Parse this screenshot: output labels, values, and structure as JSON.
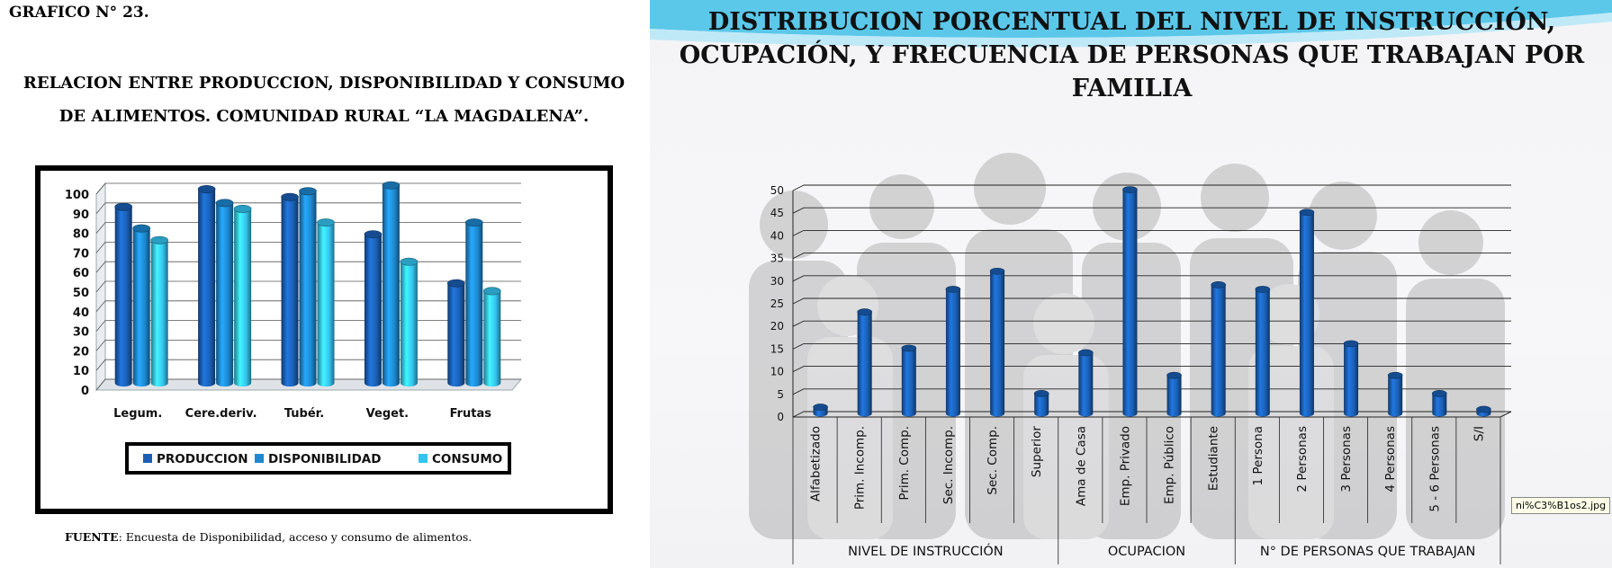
{
  "left": {
    "graph_number": "GRAFICO N° 23.",
    "title_line1": "RELACION ENTRE PRODUCCION, DISPONIBILIDAD Y CONSUMO",
    "title_line2": "DE ALIMENTOS. COMUNIDAD RURAL “LA MAGDALENA”.",
    "source_label": "FUENTE",
    "source_text": ": Encuesta de Disponibilidad, acceso y consumo de alimentos."
  },
  "right": {
    "title_line1": "DISTRIBUCION PORCENTUAL DEL NIVEL DE  INSTRUCCIÓN,",
    "title_line2": "OCUPACIÓN, Y FRECUENCIA DE PERSONAS QUE TRABAJAN POR",
    "title_line3": "FAMILIA",
    "file_label": "ni%C3%B1os2.jpg"
  },
  "chart_data": [
    {
      "type": "bar",
      "categories": [
        "Legum.",
        "Cere.deriv.",
        "Tubér.",
        "Veget.",
        "Frutas"
      ],
      "series": [
        {
          "name": "PRODUCCION",
          "color": "#1a5fb4",
          "values": [
            88,
            97,
            93,
            74,
            49
          ]
        },
        {
          "name": "DISPONIBILIDAD",
          "color": "#1e88d0",
          "values": [
            77,
            90,
            96,
            99,
            80
          ]
        },
        {
          "name": "CONSUMO",
          "color": "#35c4f0",
          "values": [
            71,
            87,
            80,
            60,
            45
          ]
        }
      ],
      "yticks": [
        0,
        10,
        20,
        30,
        40,
        50,
        60,
        70,
        80,
        90,
        100
      ],
      "ylim": [
        0,
        100
      ],
      "legend_position": "bottom",
      "grid": true
    },
    {
      "type": "bar",
      "categories": [
        "Alfabetizado",
        "Prim. Incomp.",
        "Prim. Comp.",
        "Sec. Incomp.",
        "Sec. Comp.",
        "Superior",
        "Ama de Casa",
        "Emp. Privado",
        "Emp. Público",
        "Estudiante",
        "1 Persona",
        "2 Personas",
        "3 Personas",
        "4 Personas",
        "5 - 6 Personas",
        "S/I"
      ],
      "values": [
        1,
        22,
        14,
        27,
        31,
        4,
        13,
        49,
        8,
        28,
        27,
        44,
        15,
        8,
        4,
        0.5
      ],
      "groups": [
        {
          "label": "NIVEL DE INSTRUCCIÓN",
          "count": 6
        },
        {
          "label": "OCUPACION",
          "count": 4
        },
        {
          "label": "N° DE PERSONAS QUE TRABAJAN",
          "count": 6
        }
      ],
      "yticks": [
        0,
        5,
        10,
        15,
        20,
        25,
        30,
        35,
        40,
        45,
        50
      ],
      "ylim": [
        0,
        50
      ],
      "color": "#1a5fb4",
      "grid": true
    }
  ]
}
